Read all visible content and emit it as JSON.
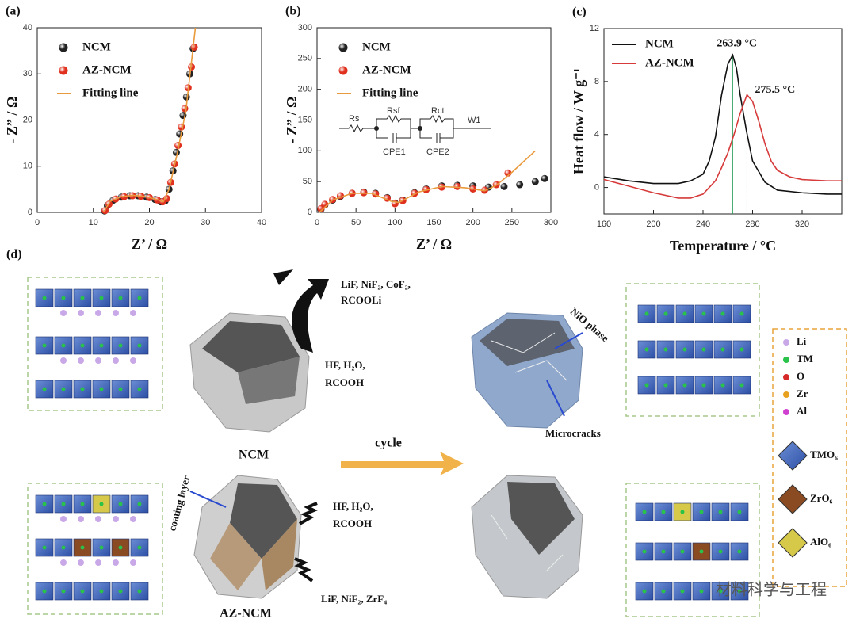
{
  "chart_data": [
    {
      "type": "scatter",
      "label": "(a)",
      "xlabel": "Z’ / Ω",
      "ylabel": "- Z” / Ω",
      "xlim": [
        0,
        40
      ],
      "xticks": [
        0,
        10,
        20,
        30,
        40
      ],
      "ylim": [
        0,
        40
      ],
      "yticks": [
        0,
        10,
        20,
        30,
        40
      ],
      "series": [
        {
          "name": "NCM",
          "color": "#222222",
          "style": "marker",
          "x": [
            12,
            12.5,
            13.5,
            15,
            16.5,
            18,
            19.5,
            21,
            22,
            22.8,
            23.5,
            24.2,
            24.8,
            25.4,
            26,
            26.6,
            27.2,
            27.8
          ],
          "values": [
            0.3,
            1.5,
            2.6,
            3.3,
            3.6,
            3.6,
            3.3,
            2.8,
            2.3,
            2.5,
            5,
            9,
            13,
            17,
            21,
            25,
            30,
            35.5
          ]
        },
        {
          "name": "AZ-NCM",
          "color": "#e0301e",
          "style": "marker",
          "x": [
            12.1,
            12.8,
            14,
            15.5,
            17,
            18.5,
            20,
            21.4,
            22.4,
            23.1,
            23.8,
            24.5,
            25.1,
            25.7,
            26.3,
            26.9,
            27.5,
            28
          ],
          "values": [
            0.4,
            1.8,
            2.9,
            3.4,
            3.6,
            3.5,
            3.2,
            2.7,
            2.3,
            3,
            6.5,
            10.5,
            14.5,
            18.5,
            22.5,
            27,
            31.5,
            35.8
          ]
        },
        {
          "name": "Fitting line",
          "color": "#e89a3c",
          "style": "line",
          "x": [
            11.8,
            13,
            15,
            17,
            19,
            21,
            22.5,
            23.5,
            25,
            26.5,
            28.2
          ],
          "values": [
            0,
            2.4,
            3.4,
            3.7,
            3.5,
            2.9,
            2.3,
            5,
            13,
            22,
            40
          ]
        }
      ]
    },
    {
      "type": "scatter",
      "label": "(b)",
      "xlabel": "Z’ / Ω",
      "ylabel": "- Z” / Ω",
      "xlim": [
        0,
        300
      ],
      "xticks": [
        0,
        50,
        100,
        150,
        200,
        250,
        300
      ],
      "ylim": [
        0,
        300
      ],
      "yticks": [
        0,
        50,
        100,
        150,
        200,
        250,
        300
      ],
      "annotations": [
        "Rs",
        "Rsf",
        "Rct",
        "W1",
        "CPE1",
        "CPE2"
      ],
      "series": [
        {
          "name": "NCM",
          "color": "#222222",
          "style": "marker",
          "x": [
            5,
            10,
            20,
            30,
            45,
            60,
            75,
            90,
            100,
            110,
            125,
            140,
            160,
            180,
            200,
            220,
            240,
            260,
            280,
            292
          ],
          "values": [
            5,
            12,
            20,
            26,
            31,
            33,
            31,
            24,
            15,
            20,
            32,
            38,
            43,
            44,
            43,
            41,
            42,
            45,
            50,
            55
          ]
        },
        {
          "name": "AZ-NCM",
          "color": "#e0301e",
          "style": "marker",
          "x": [
            5,
            10,
            20,
            30,
            45,
            60,
            75,
            90,
            100,
            110,
            125,
            140,
            160,
            180,
            200,
            215,
            230,
            245
          ],
          "values": [
            6,
            13,
            21,
            27,
            31,
            32,
            30,
            23,
            14,
            19,
            31,
            37,
            41,
            42,
            38,
            36,
            45,
            64
          ]
        },
        {
          "name": "Fitting line",
          "color": "#e89a3c",
          "style": "line",
          "x": [
            3,
            20,
            45,
            70,
            95,
            105,
            130,
            160,
            190,
            215,
            230,
            250,
            280
          ],
          "values": [
            0,
            20,
            31,
            31,
            18,
            16,
            33,
            42,
            40,
            35,
            44,
            65,
            100
          ]
        }
      ]
    },
    {
      "type": "line",
      "label": "(c)",
      "xlabel": "Temperature / °C",
      "ylabel": "Heat flow / W g⁻¹",
      "xlim": [
        160,
        352
      ],
      "xticks": [
        160,
        200,
        240,
        280,
        320
      ],
      "ylim": [
        -2,
        12
      ],
      "yticks": [
        0,
        4,
        8,
        12
      ],
      "annotations": [
        {
          "x": 263.9,
          "y": 10,
          "label": "263.9 °C",
          "color": "#2a9d5a"
        },
        {
          "x": 275.5,
          "y": 7,
          "label": "275.5 °C",
          "color": "#2a9d5a"
        }
      ],
      "series": [
        {
          "name": "NCM",
          "color": "#111111",
          "x": [
            160,
            180,
            200,
            220,
            230,
            240,
            245,
            250,
            255,
            260,
            263.9,
            267,
            270,
            275,
            280,
            290,
            300,
            320,
            340,
            352
          ],
          "values": [
            0.8,
            0.5,
            0.3,
            0.3,
            0.5,
            1,
            2,
            3.8,
            7,
            9.3,
            10,
            9,
            7,
            4.3,
            2,
            0.4,
            -0.2,
            -0.4,
            -0.5,
            -0.5
          ]
        },
        {
          "name": "AZ-NCM",
          "color": "#d63a3a",
          "x": [
            160,
            180,
            200,
            220,
            230,
            240,
            250,
            255,
            260,
            265,
            270,
            275.5,
            280,
            285,
            290,
            295,
            300,
            310,
            320,
            340,
            352
          ],
          "values": [
            0.6,
            0.1,
            -0.4,
            -0.8,
            -0.8,
            -0.5,
            0.5,
            1.5,
            2.6,
            4,
            5.6,
            7,
            6.5,
            5,
            3.3,
            2,
            1.3,
            0.8,
            0.6,
            0.5,
            0.5
          ]
        }
      ]
    }
  ],
  "diagram": {
    "label": "(d)",
    "ncm": "NCM",
    "az_ncm": "AZ-NCM",
    "cycle": "cycle",
    "products_top": [
      "LiF, NiF₂, CoF₂,",
      "RCOOLi"
    ],
    "reactants_top": [
      "HF, H₂O,",
      "RCOOH"
    ],
    "reactants_bottom": [
      "HF, H₂O,",
      "RCOOH"
    ],
    "products_bottom": "LiF, NiF₂, ZrF₄",
    "nio": "NiO phase",
    "microcracks": "Microcracks",
    "coating": "coating layer",
    "legend": [
      "Li",
      "TM",
      "O",
      "Zr",
      "Al"
    ],
    "legend_polyhedra": [
      "TMO₆",
      "ZrO₆",
      "AlO₆"
    ],
    "watermark": "材料科学与工程"
  }
}
